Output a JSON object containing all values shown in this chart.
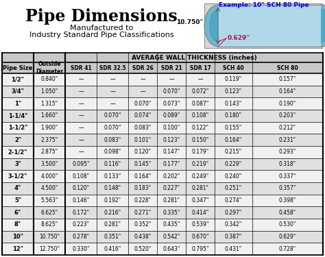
{
  "title": "Pipe Dimensions",
  "subtitle1": "Manufactured to",
  "subtitle2": "Industry Standard Pipe Classifications",
  "example_label": "Example: 10\" SCH 80 Pipe",
  "od_label": "10.750\"",
  "wall_label": "0.629\"",
  "group_header": "AVERAGE WALL THICKNESS (inches)",
  "sub_headers": [
    "SDR 41",
    "SDR 32.5",
    "SDR 26",
    "SDR 21",
    "SDR 17",
    "SCH 40",
    "SCH 80"
  ],
  "rows": [
    [
      "1/2\"",
      "0.840\"",
      "—",
      "—",
      "—",
      "—",
      "—",
      "0.119\"",
      "0.157\""
    ],
    [
      "3/4\"",
      "1.050\"",
      "—",
      "—",
      "—",
      "0.070\"",
      "0.072\"",
      "0.123\"",
      "0.164\""
    ],
    [
      "1\"",
      "1.315\"",
      "—",
      "—",
      "0.070\"",
      "0.073\"",
      "0.087\"",
      "0.143\"",
      "0.190\""
    ],
    [
      "1-1/4\"",
      "1.660\"",
      "—",
      "0.070\"",
      "0.074\"",
      "0.089\"",
      "0.108\"",
      "0.180\"",
      "0.203\""
    ],
    [
      "1-1/2\"",
      "1.900\"",
      "—",
      "0.070\"",
      "0.083\"",
      "0.100\"",
      "0.122\"",
      "0.155\"",
      "0.212\""
    ],
    [
      "2\"",
      "2.375\"",
      "—",
      "0.083\"",
      "0.101\"",
      "0.123\"",
      "0.150\"",
      "0.164\"",
      "0.231\""
    ],
    [
      "2-1/2\"",
      "2.875\"",
      "—",
      "0.098\"",
      "0.120\"",
      "0.147\"",
      "0.179\"",
      "0.215\"",
      "0.293\""
    ],
    [
      "3\"",
      "3.500\"",
      "0.095\"",
      "0.116\"",
      "0.145\"",
      "0.177\"",
      "0.219\"",
      "0.229\"",
      "0.318\""
    ],
    [
      "3-1/2\"",
      "4.000\"",
      "0.108\"",
      "0.133\"",
      "0.164\"",
      "0.202\"",
      "0.249\"",
      "0.240\"",
      "0.337\""
    ],
    [
      "4\"",
      "4.500\"",
      "0.120\"",
      "0.148\"",
      "0.183\"",
      "0.227\"",
      "0.281\"",
      "0.251\"",
      "0.357\""
    ],
    [
      "5\"",
      "5.563\"",
      "0.146\"",
      "0.192\"",
      "0.228\"",
      "0.281\"",
      "0.347\"",
      "0.274\"",
      "0.398\""
    ],
    [
      "6\"",
      "6.625\"",
      "0.172\"",
      "0.216\"",
      "0.271\"",
      "0.335\"",
      "0.414\"",
      "0.297\"",
      "0.458\""
    ],
    [
      "8\"",
      "8.625\"",
      "0.223\"",
      "0.281\"",
      "0.352\"",
      "0.435\"",
      "0.539\"",
      "0.342\"",
      "0.530\""
    ],
    [
      "10\"",
      "10.750\"",
      "0.278\"",
      "0.351\"",
      "0.438\"",
      "0.542\"",
      "0.670\"",
      "0.387\"",
      "0.629\""
    ],
    [
      "12\"",
      "12.750\"",
      "0.330\"",
      "0.416\"",
      "0.520\"",
      "0.643\"",
      "0.795\"",
      "0.431\"",
      "0.728\""
    ]
  ],
  "bg_color": "#ffffff",
  "pipe_body_color": "#b0d8e8",
  "pipe_inner_color": "#6bb8d0",
  "pipe_hole_color": "#50a8c8",
  "pipe_border_color": "#808080",
  "example_color": "#0000cc",
  "od_color": "#000000",
  "wall_color": "#cc0055",
  "title_color": "#000000",
  "header_gray": "#c8c8c8",
  "row_colors": [
    "#f0f0f0",
    "#e0e0e0"
  ]
}
